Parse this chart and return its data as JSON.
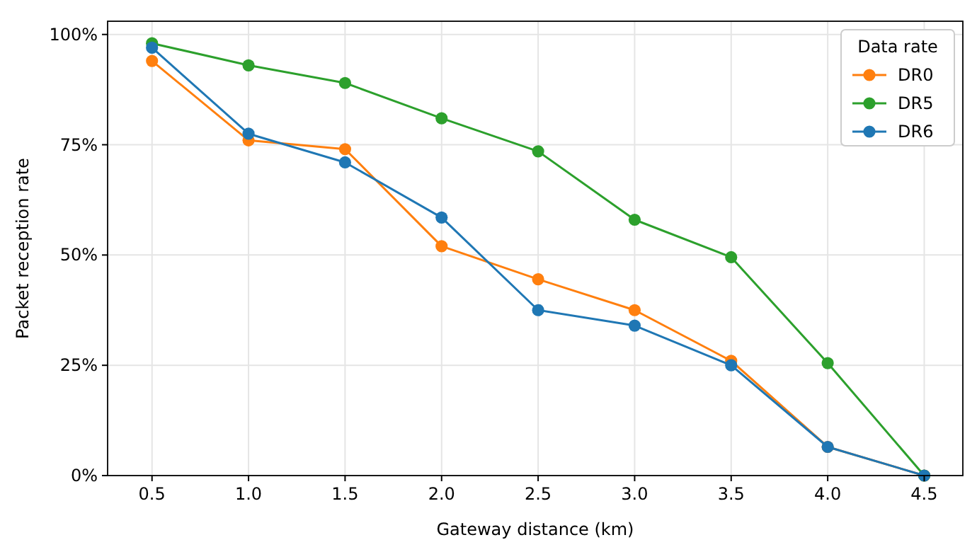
{
  "chart_data": {
    "type": "line",
    "xlabel": "Gateway distance (km)",
    "ylabel": "Packet reception rate",
    "legend_title": "Data rate",
    "legend": "top right",
    "grid": true,
    "marker": "circle",
    "line_style": "solid",
    "x": [
      0.5,
      1.0,
      1.5,
      2.0,
      2.5,
      3.0,
      3.5,
      4.0,
      4.5
    ],
    "xlim": [
      0.27,
      4.7
    ],
    "xticks": [
      0.5,
      {
        "value": 1,
        "label": "1.0"
      },
      1.5,
      {
        "value": 2,
        "label": "2.0"
      },
      2.5,
      {
        "value": 3,
        "label": "3.0"
      },
      3.5,
      {
        "value": 4,
        "label": "4.0"
      },
      4.5
    ],
    "ylim": [
      0,
      103
    ],
    "yticks": [
      {
        "value": 0,
        "label": "0%"
      },
      {
        "value": 25,
        "label": "25%"
      },
      {
        "value": 50,
        "label": "50%"
      },
      {
        "value": 75,
        "label": "75%"
      },
      {
        "value": 100,
        "label": "100%"
      }
    ],
    "series": [
      {
        "name": "DR0",
        "color": "#ff7f0e",
        "values": [
          94,
          76,
          74,
          52,
          44.5,
          37.5,
          26,
          6.5,
          0
        ]
      },
      {
        "name": "DR5",
        "color": "#2ca02c",
        "values": [
          98,
          93,
          89,
          81,
          73.5,
          58,
          49.5,
          25.5,
          0
        ]
      },
      {
        "name": "DR6",
        "color": "#1f77b4",
        "values": [
          97,
          77.5,
          71,
          58.5,
          37.5,
          34,
          25,
          6.5,
          0
        ]
      }
    ]
  }
}
